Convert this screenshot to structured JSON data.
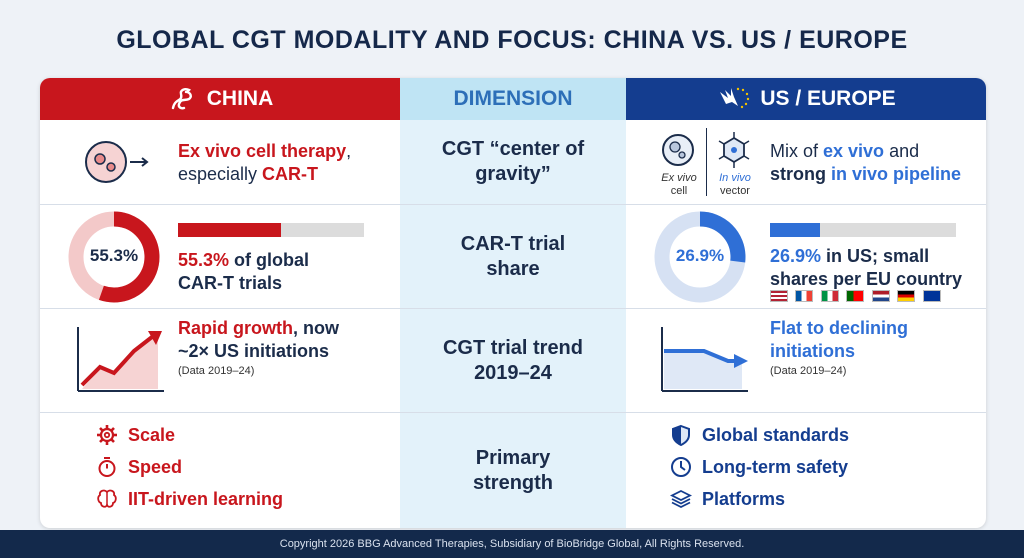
{
  "title": "GLOBAL CGT MODALITY AND FOCUS: CHINA VS. US / EUROPE",
  "headers": {
    "china": "CHINA",
    "dimension": "DIMENSION",
    "us": "US / EUROPE"
  },
  "rows": [
    {
      "dimension": "CGT “center of gravity”",
      "china": {
        "t1": "Ex vivo cell therapy",
        "t2": ",",
        "t3": "especially ",
        "t4": "CAR-T"
      },
      "us": {
        "icon_label1a": "Ex vivo",
        "icon_label1b": "cell",
        "icon_label2a": "In vivo",
        "icon_label2b": "vector",
        "t1": "Mix of ",
        "t2": "ex vivo",
        "t3": " and",
        "t4": "strong ",
        "t5": "in vivo pipeline"
      }
    },
    {
      "dimension": "CAR-T trial share",
      "china": {
        "donut": "55.3%",
        "value": 0.553,
        "t1": "55.3%",
        "t2": " of global",
        "t3": "CAR-T trials"
      },
      "us": {
        "donut": "26.9%",
        "value": 0.269,
        "t1": "26.9%",
        "t2": " in US; small",
        "t3": "shares per EU country"
      }
    },
    {
      "dimension": "CGT trial trend 2019–24",
      "china": {
        "t1": "Rapid growth",
        "t2": ", now",
        "t3": "~2× US initiations",
        "note": "(Data 2019–24)"
      },
      "us": {
        "t1": "Flat to declining",
        "t2": "initiations",
        "note": "(Data 2019–24)"
      }
    },
    {
      "dimension": "Primary strength",
      "china": {
        "items": [
          "Scale",
          "Speed",
          "IIT-driven learning"
        ]
      },
      "us": {
        "items": [
          "Global standards",
          "Long-term safety",
          "Platforms"
        ]
      }
    }
  ],
  "footer": "Copyright 2026 BBG Advanced Therapies, Subsidiary of BioBridge Global, All Rights Reserved.",
  "colors": {
    "china_red": "#c8161d",
    "us_blue": "#143d8f",
    "accent_blue": "#2f6fd6",
    "dimension_bg": "#e3f2fa"
  },
  "icons": {
    "china": "dragon-icon",
    "us": "eagle-eu-icon"
  }
}
